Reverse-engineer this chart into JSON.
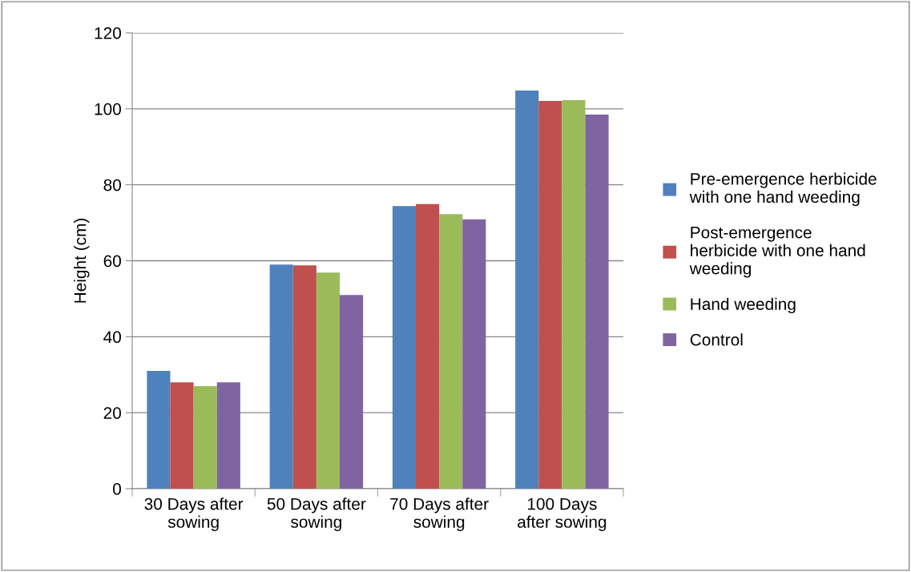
{
  "chart_data": {
    "type": "bar",
    "ylabel": "Height (cm)",
    "categories": [
      "30 Days after\nsowing",
      "50 Days after\nsowing",
      "70 Days after\nsowing",
      "100 Days\nafter sowing"
    ],
    "series": [
      {
        "name": "Pre-emergence herbicide\nwith one hand weeding",
        "color": "#4f81bd",
        "values": [
          31.0,
          59.0,
          74.4,
          104.8
        ]
      },
      {
        "name": "Post-emergence\nherbicide with one hand\nweeding",
        "color": "#c0504d",
        "values": [
          28.0,
          58.8,
          74.9,
          102.1
        ]
      },
      {
        "name": "Hand weeding",
        "color": "#9bbb59",
        "values": [
          27.0,
          56.9,
          72.3,
          102.3
        ]
      },
      {
        "name": "Control",
        "color": "#8064a2",
        "values": [
          28.0,
          51.0,
          70.9,
          98.5
        ]
      }
    ],
    "ylim": [
      0,
      120
    ],
    "yticks": [
      0,
      20,
      40,
      60,
      80,
      100,
      120
    ],
    "grid": "y",
    "legend": "right"
  }
}
